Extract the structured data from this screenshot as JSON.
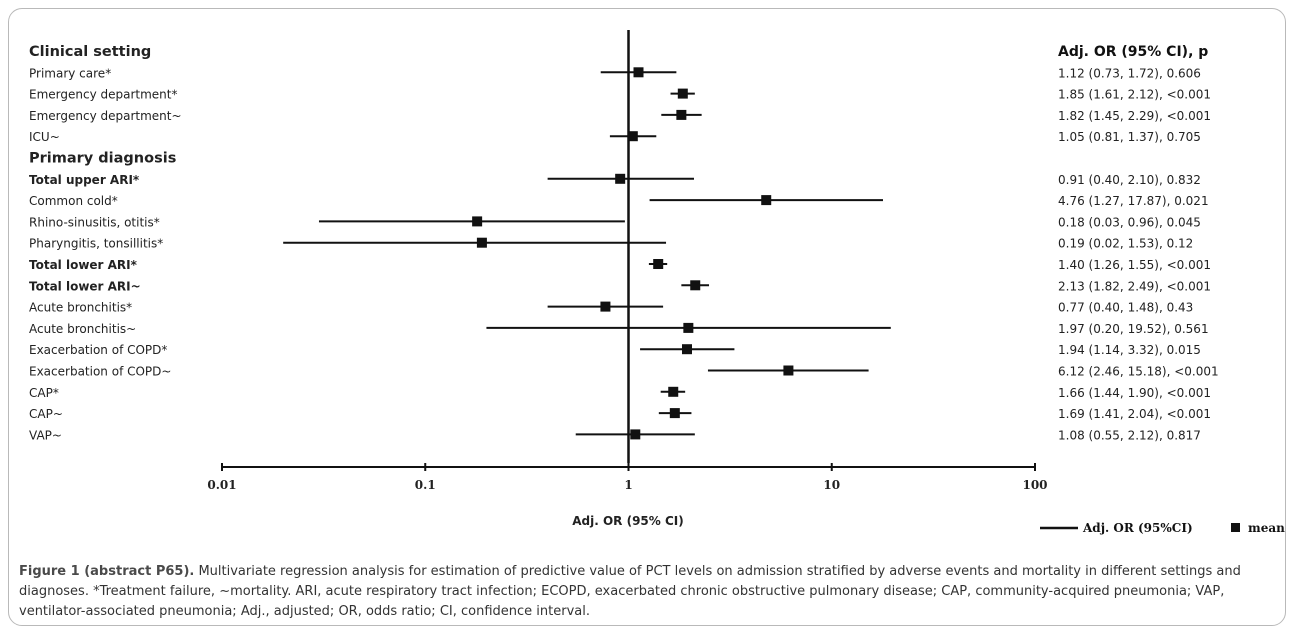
{
  "chart_data": {
    "type": "forest",
    "xscale": "log",
    "xlim": [
      0.01,
      100
    ],
    "xticks": [
      "0.01",
      "0.1",
      "1",
      "10",
      "100"
    ],
    "xlabel": "Adj. OR (95% CI)",
    "ref_line": 1,
    "right_header": "Adj. OR (95% CI), p",
    "legend": {
      "ci_label": "Adj. OR (95%CI)",
      "point_label": "mean",
      "placement": "bottom-right"
    },
    "rows": [
      {
        "label": "Clinical setting",
        "kind": "header"
      },
      {
        "label": "Primary care*",
        "kind": "item",
        "or": 1.12,
        "lo": 0.73,
        "hi": 1.72,
        "text": "1.12 (0.73, 1.72), 0.606"
      },
      {
        "label": "Emergency department*",
        "kind": "item",
        "or": 1.85,
        "lo": 1.61,
        "hi": 2.12,
        "text": "1.85 (1.61, 2.12), <0.001"
      },
      {
        "label": "Emergency department~",
        "kind": "item",
        "or": 1.82,
        "lo": 1.45,
        "hi": 2.29,
        "text": "1.82 (1.45, 2.29), <0.001"
      },
      {
        "label": "ICU~",
        "kind": "item",
        "or": 1.05,
        "lo": 0.81,
        "hi": 1.37,
        "text": "1.05 (0.81, 1.37), 0.705"
      },
      {
        "label": "Primary diagnosis",
        "kind": "header"
      },
      {
        "label": "Total upper ARI*",
        "kind": "bold",
        "or": 0.91,
        "lo": 0.4,
        "hi": 2.1,
        "text": "0.91 (0.40, 2.10), 0.832"
      },
      {
        "label": "Common cold*",
        "kind": "item",
        "or": 4.76,
        "lo": 1.27,
        "hi": 17.87,
        "text": "4.76 (1.27, 17.87), 0.021"
      },
      {
        "label": "Rhino-sinusitis, otitis*",
        "kind": "item",
        "or": 0.18,
        "lo": 0.03,
        "hi": 0.96,
        "text": "0.18 (0.03, 0.96), 0.045"
      },
      {
        "label": "Pharyngitis, tonsillitis*",
        "kind": "item",
        "or": 0.19,
        "lo": 0.02,
        "hi": 1.53,
        "text": "0.19 (0.02, 1.53), 0.12"
      },
      {
        "label": "Total lower ARI*",
        "kind": "bold",
        "or": 1.4,
        "lo": 1.26,
        "hi": 1.55,
        "text": "1.40 (1.26, 1.55), <0.001"
      },
      {
        "label": "Total lower ARI~",
        "kind": "bold",
        "or": 2.13,
        "lo": 1.82,
        "hi": 2.49,
        "text": "2.13 (1.82, 2.49), <0.001"
      },
      {
        "label": "Acute bronchitis*",
        "kind": "item",
        "or": 0.77,
        "lo": 0.4,
        "hi": 1.48,
        "text": "0.77 (0.40, 1.48), 0.43"
      },
      {
        "label": "Acute bronchitis~",
        "kind": "item",
        "or": 1.97,
        "lo": 0.2,
        "hi": 19.52,
        "text": "1.97 (0.20, 19.52), 0.561"
      },
      {
        "label": "Exacerbation of COPD*",
        "kind": "item",
        "or": 1.94,
        "lo": 1.14,
        "hi": 3.32,
        "text": "1.94 (1.14, 3.32), 0.015"
      },
      {
        "label": "Exacerbation of COPD~",
        "kind": "item",
        "or": 6.12,
        "lo": 2.46,
        "hi": 15.18,
        "text": "6.12 (2.46, 15.18), <0.001"
      },
      {
        "label": "CAP*",
        "kind": "item",
        "or": 1.66,
        "lo": 1.44,
        "hi": 1.9,
        "text": "1.66 (1.44, 1.90), <0.001"
      },
      {
        "label": "CAP~",
        "kind": "item",
        "or": 1.69,
        "lo": 1.41,
        "hi": 2.04,
        "text": "1.69 (1.41, 2.04), <0.001"
      },
      {
        "label": "VAP~",
        "kind": "item",
        "or": 1.08,
        "lo": 0.55,
        "hi": 2.12,
        "text": "1.08 (0.55, 2.12), 0.817"
      }
    ]
  },
  "caption": {
    "title": "Figure 1 (abstract P65).",
    "body": " Multivariate regression analysis for estimation of predictive value of PCT levels on admission stratified by adverse events and mortality in different settings and diagnoses. *Treatment failure, ~mortality. ARI, acute respiratory tract infection; ECOPD, exacerbated chronic obstructive pulmonary disease; CAP, community-acquired pneumonia; VAP, ventilator-associated pneumonia; Adj., adjusted; OR, odds ratio; CI, confidence interval."
  }
}
